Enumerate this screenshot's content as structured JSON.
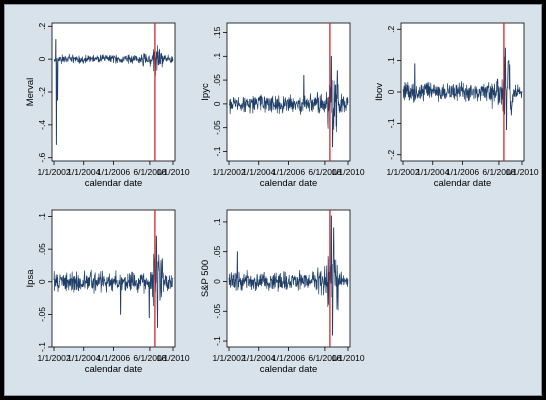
{
  "colors": {
    "background": "#d8e2ea",
    "plot_area": "#ffffff",
    "series_line": "#1f3f68",
    "event_line": "#d01818"
  },
  "chart_data": [
    {
      "type": "line",
      "xlabel": "calendar date",
      "ylabel": "Merval",
      "x_ticklabels": [
        "1/1/2002",
        "1/1/2004",
        "1/1/2006",
        "6/1/2008",
        "1/1/2010"
      ],
      "yticks": [
        ".2",
        "0",
        "-.2",
        "-.4",
        "-.6"
      ],
      "ylim": [
        -0.62,
        0.22
      ],
      "event_line_x": "2008-10-01",
      "series": [
        {
          "volatility": 0.018,
          "spikes": [
            {
              "t": 0.02,
              "v": -0.52
            },
            {
              "t": 0.015,
              "v": 0.12
            },
            {
              "t": 0.03,
              "v": -0.25
            },
            {
              "t": 0.85,
              "v": -0.1
            }
          ]
        }
      ]
    },
    {
      "type": "line",
      "xlabel": "calendar date",
      "ylabel": "Ipyc",
      "x_ticklabels": [
        "1/1/2002",
        "1/1/2004",
        "1/1/2006",
        "6/1/2008",
        "1/1/2010"
      ],
      "yticks": [
        ".15",
        ".1",
        ".05",
        "0",
        "-.05",
        "-.1"
      ],
      "ylim": [
        -0.12,
        0.17
      ],
      "event_line_x": "2008-10-01",
      "series": [
        {
          "volatility": 0.013,
          "spikes": [
            {
              "t": 0.63,
              "v": 0.06
            },
            {
              "t": 0.86,
              "v": 0.1
            },
            {
              "t": 0.87,
              "v": -0.09
            },
            {
              "t": 0.91,
              "v": 0.07
            }
          ]
        }
      ]
    },
    {
      "type": "line",
      "xlabel": "calendar date",
      "ylabel": "Ibov",
      "x_ticklabels": [
        "1/1/2002",
        "1/1/2004",
        "1/1/2006",
        "6/1/2008",
        "1/1/2010"
      ],
      "yticks": [
        ".2",
        ".1",
        "0",
        "-.1",
        "-.2"
      ],
      "ylim": [
        -0.22,
        0.22
      ],
      "event_line_x": "2008-10-01",
      "series": [
        {
          "volatility": 0.021,
          "spikes": [
            {
              "t": 0.86,
              "v": 0.14
            },
            {
              "t": 0.87,
              "v": -0.12
            },
            {
              "t": 0.1,
              "v": 0.09
            },
            {
              "t": 0.89,
              "v": 0.1
            }
          ]
        }
      ]
    },
    {
      "type": "line",
      "xlabel": "calendar date",
      "ylabel": "Ipsa",
      "x_ticklabels": [
        "1/1/2002",
        "1/1/2004",
        "1/1/2006",
        "6/1/2008",
        "1/1/2010"
      ],
      "yticks": [
        ".1",
        ".05",
        "0",
        "-.05",
        "-.1"
      ],
      "ylim": [
        -0.1,
        0.11
      ],
      "event_line_x": "2008-10-01",
      "series": [
        {
          "volatility": 0.011,
          "spikes": [
            {
              "t": 0.86,
              "v": 0.07
            },
            {
              "t": 0.87,
              "v": -0.07
            },
            {
              "t": 0.8,
              "v": -0.055
            },
            {
              "t": 0.56,
              "v": -0.05
            }
          ]
        }
      ]
    },
    {
      "type": "line",
      "xlabel": "calendar date",
      "ylabel": "S&P 500",
      "x_ticklabels": [
        "1/1/2002",
        "1/1/2004",
        "1/1/2006",
        "6/1/2008",
        "1/1/2010"
      ],
      "yticks": [
        ".1",
        ".05",
        "0",
        "-.05",
        "-.1"
      ],
      "ylim": [
        -0.11,
        0.12
      ],
      "event_line_x": "2008-10-01",
      "series": [
        {
          "volatility": 0.011,
          "spikes": [
            {
              "t": 0.86,
              "v": 0.11
            },
            {
              "t": 0.87,
              "v": -0.09
            },
            {
              "t": 0.88,
              "v": 0.09
            },
            {
              "t": 0.07,
              "v": 0.05
            }
          ]
        }
      ]
    }
  ]
}
